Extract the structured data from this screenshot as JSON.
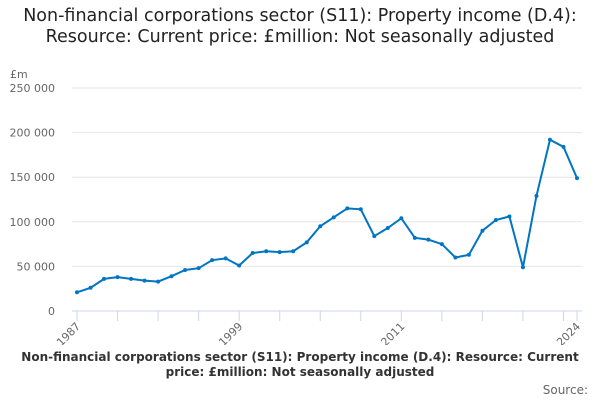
{
  "chart_data": {
    "type": "line",
    "title": "Non-financial corporations sector (S11): Property income (D.4): Resource: Current price: £million: Not seasonally adjusted",
    "ylabel": "£m",
    "xlabel": "",
    "ylim": [
      0,
      250000
    ],
    "yticks": [
      "0",
      "50 000",
      "100 000",
      "150 000",
      "200 000",
      "250 000"
    ],
    "xtick_labels": [
      "1987",
      "1999",
      "2011",
      "2024"
    ],
    "grid": true,
    "color": "#0075c2",
    "x": [
      1987,
      1988,
      1989,
      1990,
      1991,
      1992,
      1993,
      1994,
      1995,
      1996,
      1997,
      1998,
      1999,
      2000,
      2001,
      2002,
      2003,
      2004,
      2005,
      2006,
      2007,
      2008,
      2009,
      2010,
      2011,
      2012,
      2013,
      2014,
      2015,
      2016,
      2017,
      2018,
      2019,
      2020,
      2021,
      2022,
      2023,
      2024
    ],
    "values": [
      21000,
      26000,
      36000,
      38000,
      36000,
      34000,
      33000,
      39000,
      46000,
      48000,
      57000,
      59000,
      51000,
      65000,
      67000,
      66000,
      67000,
      77000,
      95000,
      105000,
      115000,
      114000,
      84000,
      93000,
      104000,
      82000,
      80000,
      75000,
      60000,
      63000,
      90000,
      102000,
      106000,
      49000,
      129000,
      192000,
      184000,
      149000
    ]
  },
  "footer": {
    "title": "Non-financial corporations sector (S11): Property income (D.4): Resource: Current price: £million: Not seasonally adjusted",
    "source": "Source:"
  }
}
